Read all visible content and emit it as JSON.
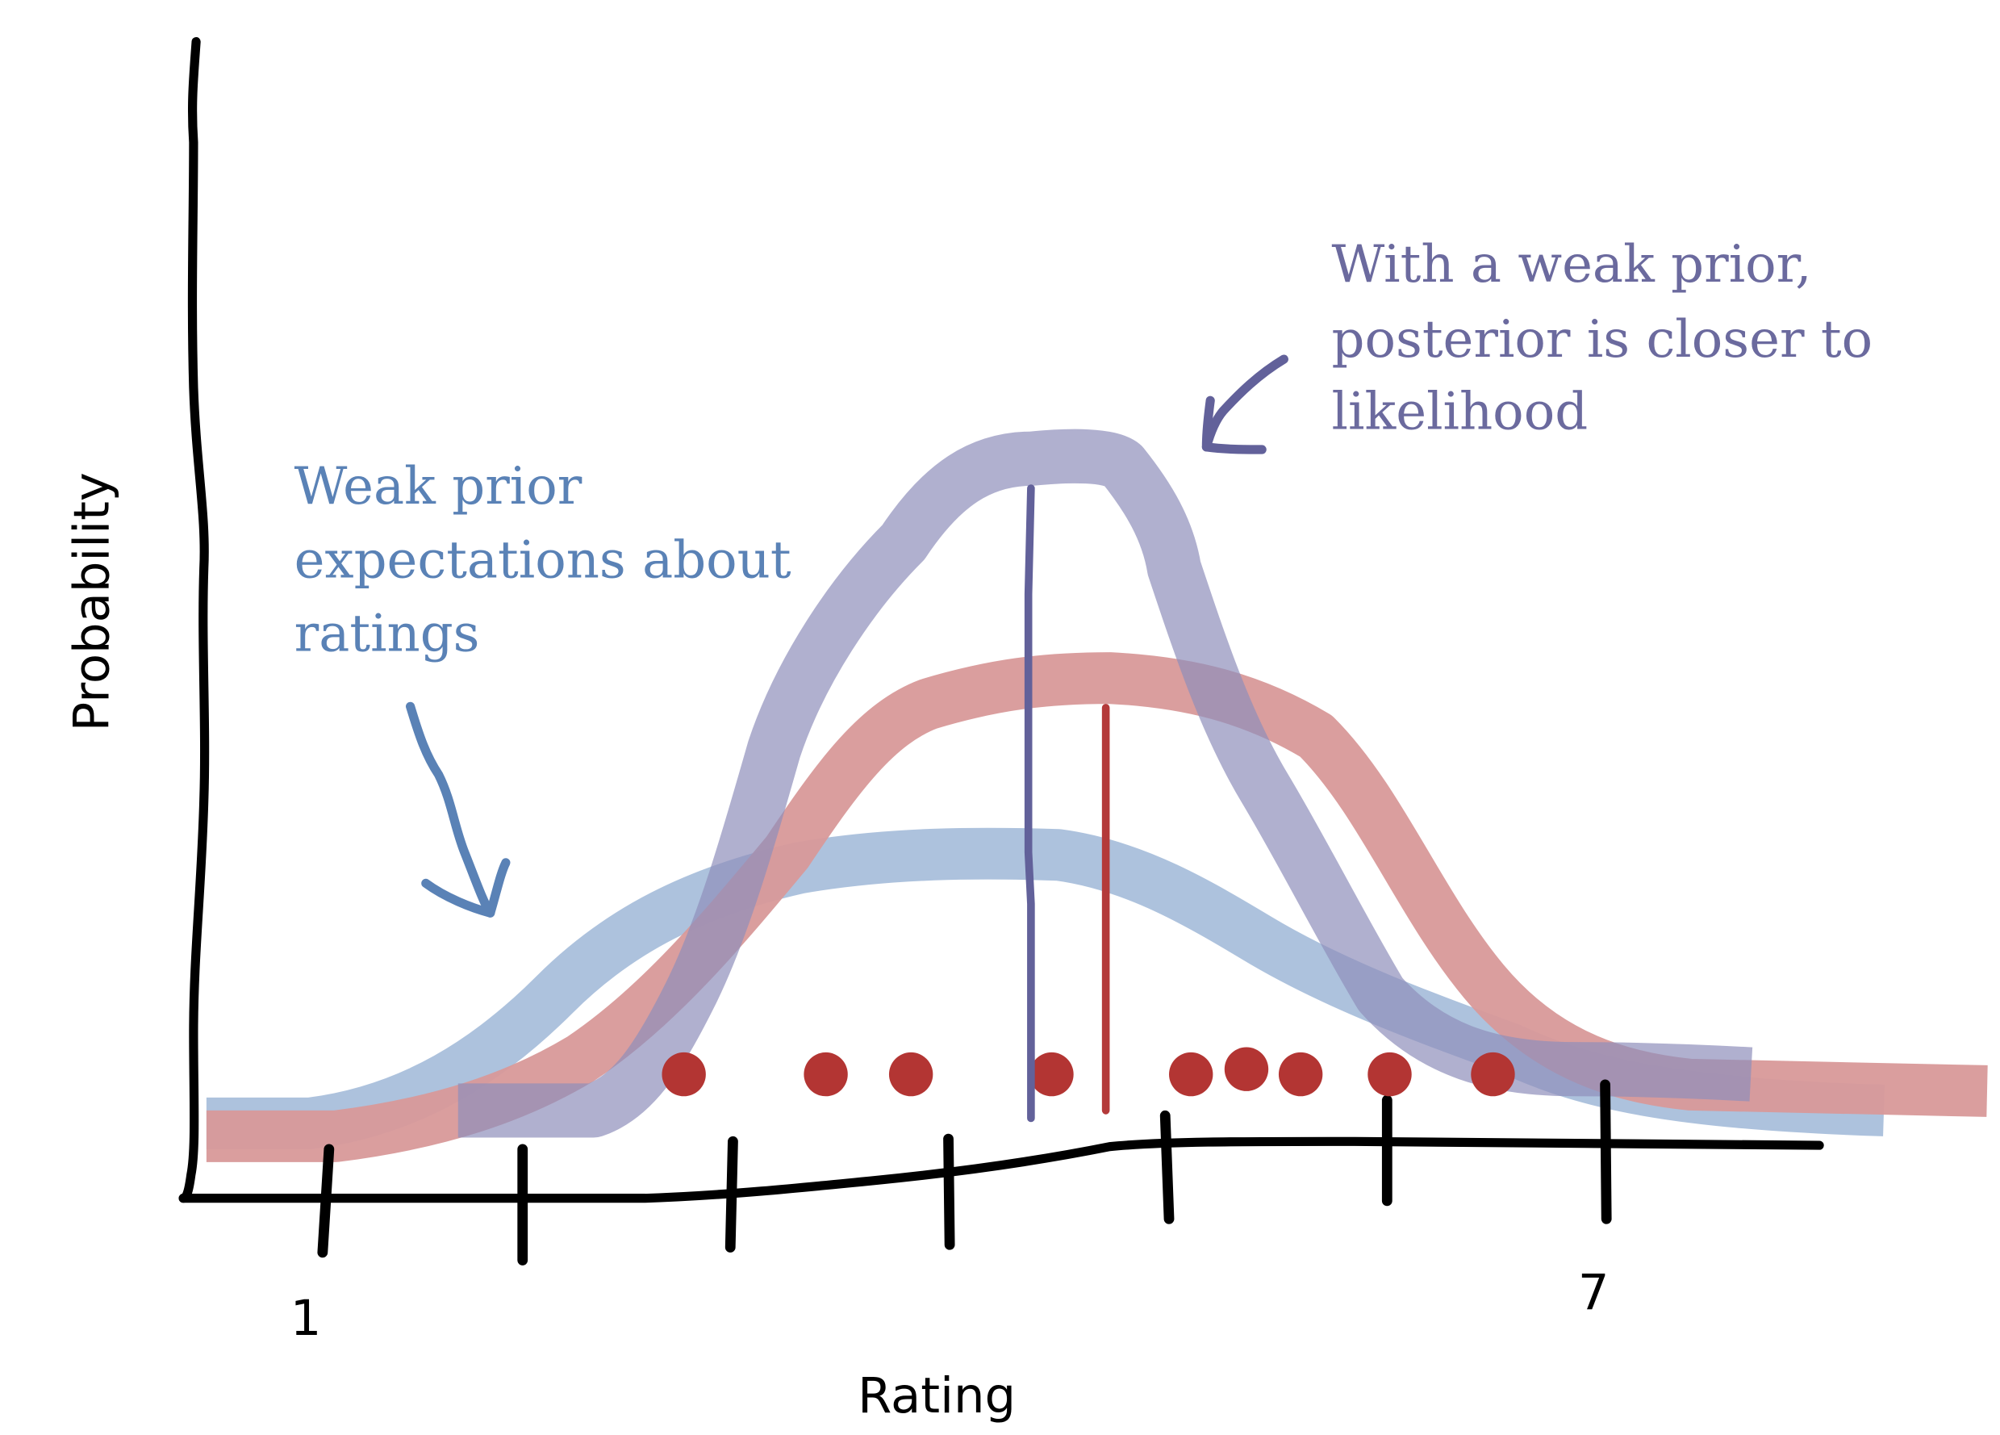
{
  "diagram": {
    "y_axis_label": "Probability",
    "x_axis_label": "Rating",
    "tick_labels": {
      "first": "1",
      "last": "7"
    },
    "prior_annotation": [
      "Weak prior",
      "expectations about",
      "ratings"
    ],
    "posterior_annotation": [
      "With a weak prior,",
      "posterior is closer to",
      "likelihood"
    ]
  },
  "colors": {
    "axis": "#000000",
    "prior": "#a9bfdb",
    "likelihood": "#d89999",
    "posterior": "#b0b0cc",
    "posterior_line": "#62619a",
    "likelihood_line": "#b43a3a",
    "data_points": "#b33533",
    "prior_text": "#5a82b6",
    "posterior_text": "#6b6a9e"
  },
  "icons": [
    "prior-arrow-icon",
    "posterior-arrow-icon"
  ]
}
